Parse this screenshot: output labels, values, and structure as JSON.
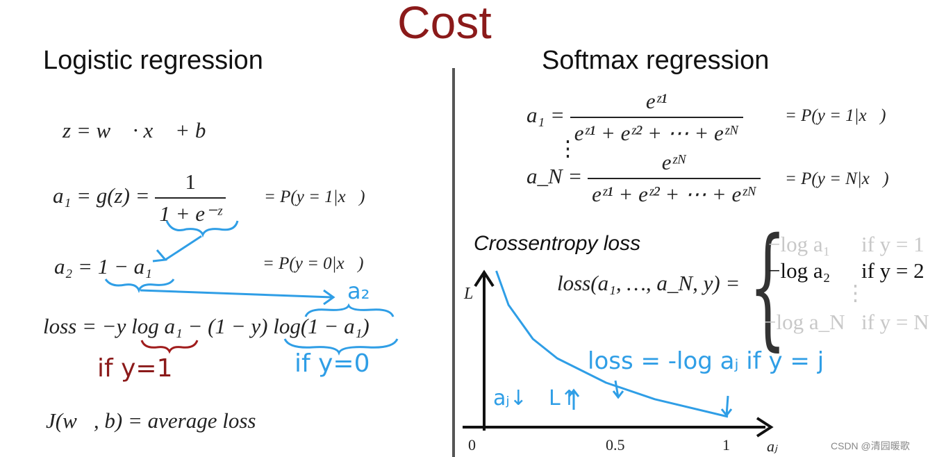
{
  "title": "Cost",
  "left": {
    "heading": "Logistic regression",
    "eq_z": "z = w⃗ · x⃗ + b",
    "eq_a1_left": "a₁ = g(z) =",
    "eq_a1_num": "1",
    "eq_a1_den": "1 + e⁻ᶻ",
    "eq_a1_prob": "= P(y = 1|x⃗)",
    "eq_a2": "a₂ = 1 − a₁",
    "eq_a2_prob": "= P(y = 0|x⃗)",
    "eq_loss": "loss = −y log a₁ − (1 − y) log(1 − a₁)",
    "eq_cost": "J(w⃗, b) = average loss",
    "annotation_a2": "a₂",
    "annotation_if1": "if y=1",
    "annotation_if0": "if y=0"
  },
  "right": {
    "heading": "Softmax regression",
    "eq_a1_left": "a₁ =",
    "eq_a1_num": "eᶻ¹",
    "eq_a1_den": "eᶻ¹ + eᶻ² + ⋯ + eᶻᴺ",
    "eq_a1_prob": "= P(y = 1|x⃗)",
    "vdots": "⋮",
    "eq_aN_left": "a_N =",
    "eq_aN_num": "eᶻᴺ",
    "eq_aN_den": "eᶻ¹ + eᶻ² + ⋯ + eᶻᴺ",
    "eq_aN_prob": "= P(y = N|x⃗)",
    "crossentropy_label": "Crossentropy loss",
    "loss_lhs": "loss(a₁, …, a_N, y) =",
    "cases": [
      {
        "expr": "−log a₁",
        "cond": "if y = 1",
        "muted": true
      },
      {
        "expr": "−log a₂",
        "cond": "if y = 2",
        "muted": false
      },
      {
        "expr": "−log a_N",
        "cond": "if y = N",
        "muted": true
      }
    ],
    "case_dots": "⋮"
  },
  "chart_data": {
    "type": "line",
    "xlabel": "aⱼ",
    "ylabel": "L",
    "x_ticks": [
      "0",
      "0.5",
      "1"
    ],
    "series": [
      {
        "x": [
          0.05,
          0.1,
          0.2,
          0.3,
          0.5,
          0.7,
          1.0
        ],
        "y": [
          3.0,
          2.3,
          1.6,
          1.2,
          0.7,
          0.36,
          0.0
        ]
      }
    ],
    "annotations": [
      "loss = -log aⱼ  if y = j",
      "aⱼ↓",
      "L↑"
    ]
  },
  "watermark": "CSDN @清园暖歌",
  "colors": {
    "title": "#8b1a1a",
    "annotation_blue": "#2f9ee6",
    "annotation_red": "#a01c1c",
    "muted": "#c8c8c8"
  }
}
